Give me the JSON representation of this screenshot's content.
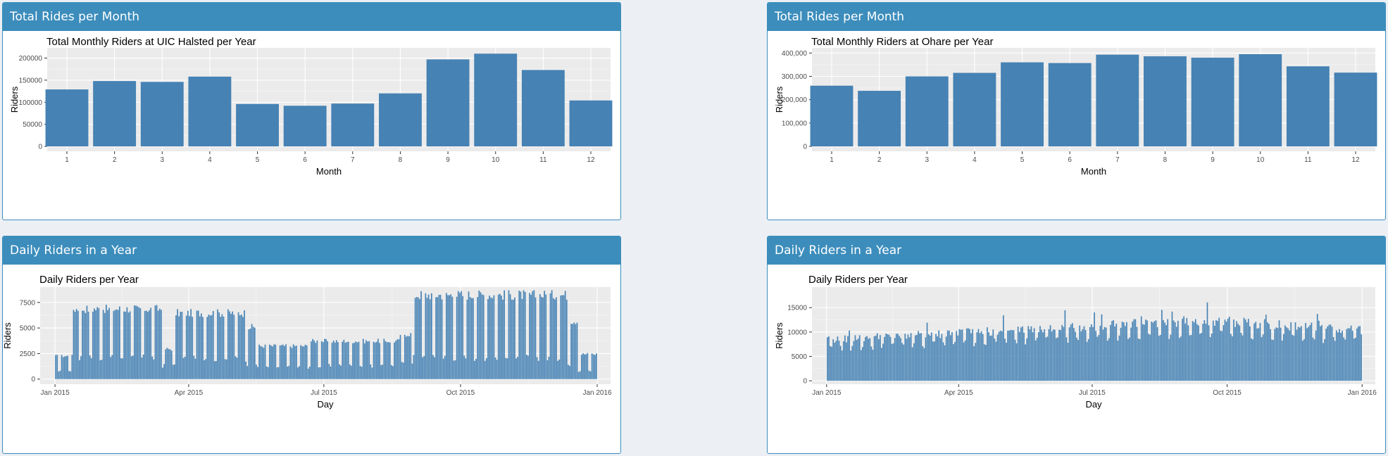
{
  "panels": [
    {
      "header": "Total Rides per Month"
    },
    {
      "header": "Total Rides per Month"
    },
    {
      "header": "Daily Riders in a Year"
    },
    {
      "header": "Daily Riders in a Year"
    }
  ],
  "colors": {
    "header_bg": "#3c8dbc",
    "bar": "#4682b4",
    "plot_bg": "#ebebeb",
    "page_bg": "#ecf0f5"
  },
  "chart_data": [
    {
      "type": "bar",
      "title": "Total Monthly Riders at UIC Halsted per Year",
      "xlabel": "Month",
      "ylabel": "Riders",
      "categories": [
        "1",
        "2",
        "3",
        "4",
        "5",
        "6",
        "7",
        "8",
        "9",
        "10",
        "11",
        "12"
      ],
      "values": [
        129000,
        148000,
        146000,
        158000,
        96000,
        92000,
        97000,
        120000,
        197000,
        210000,
        173000,
        104000
      ],
      "ylim": [
        0,
        212000
      ],
      "yticks": [
        0,
        50000,
        100000,
        150000,
        200000
      ],
      "ytick_labels": [
        "0",
        "50000",
        "100000",
        "150000",
        "200000"
      ],
      "grid": true
    },
    {
      "type": "bar",
      "title": "Total Monthly Riders at Ohare per Year",
      "xlabel": "Month",
      "ylabel": "Riders",
      "categories": [
        "1",
        "2",
        "3",
        "4",
        "5",
        "6",
        "7",
        "8",
        "9",
        "10",
        "11",
        "12"
      ],
      "values": [
        260000,
        238000,
        300000,
        315000,
        360000,
        357000,
        393000,
        386000,
        380000,
        395000,
        343000,
        316000
      ],
      "ylim": [
        0,
        401000
      ],
      "yticks": [
        0,
        100000,
        200000,
        300000,
        400000
      ],
      "ytick_labels": [
        "0",
        "100,000",
        "200,000",
        "300,000",
        "400,000"
      ],
      "grid": true
    },
    {
      "type": "bar",
      "title": "Daily Riders per Year",
      "xlabel": "Day",
      "ylabel": "Riders",
      "x_start": "2015-01-01",
      "x_end": "2015-12-31",
      "xlim": [
        "2014-12-22",
        "2016-01-10"
      ],
      "xticks": [
        "2015-01-01",
        "2015-04-01",
        "2015-07-01",
        "2015-10-01",
        "2016-01-01"
      ],
      "xtick_labels": [
        "Jan 2015",
        "Apr 2015",
        "Jul 2015",
        "Oct 2015",
        "Jan 2016"
      ],
      "segments": [
        {
          "from": "2015-01-01",
          "to": "2015-01-12",
          "weekday": 2300,
          "weekend": 850
        },
        {
          "from": "2015-01-13",
          "to": "2015-03-13",
          "weekday": 7000,
          "weekend": 2100
        },
        {
          "from": "2015-03-14",
          "to": "2015-03-22",
          "weekday": 3000,
          "weekend": 1300
        },
        {
          "from": "2015-03-23",
          "to": "2015-05-09",
          "weekday": 6600,
          "weekend": 2000
        },
        {
          "from": "2015-05-10",
          "to": "2015-05-16",
          "weekday": 5200,
          "weekend": 1500
        },
        {
          "from": "2015-05-17",
          "to": "2015-06-20",
          "weekday": 3300,
          "weekend": 1200
        },
        {
          "from": "2015-06-21",
          "to": "2015-08-20",
          "weekday": 3800,
          "weekend": 1300
        },
        {
          "from": "2015-08-21",
          "to": "2015-08-29",
          "weekday": 4500,
          "weekend": 1500
        },
        {
          "from": "2015-08-30",
          "to": "2015-12-11",
          "weekday": 8400,
          "weekend": 2100
        },
        {
          "from": "2015-12-12",
          "to": "2015-12-18",
          "weekday": 5800,
          "weekend": 1500
        },
        {
          "from": "2015-12-19",
          "to": "2015-12-31",
          "weekday": 2500,
          "weekend": 800
        }
      ],
      "ylim": [
        -500,
        9000
      ],
      "yticks": [
        0,
        2500,
        5000,
        7500
      ],
      "ytick_labels": [
        "0",
        "2500",
        "5000",
        "7500"
      ],
      "grid": true
    },
    {
      "type": "bar",
      "title": "Daily Riders per Year",
      "xlabel": "Day",
      "ylabel": "Riders",
      "x_start": "2015-01-01",
      "x_end": "2015-12-31",
      "xlim": [
        "2014-12-22",
        "2016-01-10"
      ],
      "xticks": [
        "2015-01-01",
        "2015-04-01",
        "2015-07-01",
        "2015-10-01",
        "2016-01-01"
      ],
      "xtick_labels": [
        "Jan 2015",
        "Apr 2015",
        "Jul 2015",
        "Oct 2015",
        "Jan 2016"
      ],
      "segments": [
        {
          "from": "2015-01-01",
          "to": "2015-12-31",
          "start_level": 8500,
          "end_level": 10500,
          "peak_level": 12500,
          "peak_date": "2015-09-15",
          "max": 18500
        }
      ],
      "ylim": [
        -700,
        19200
      ],
      "yticks": [
        0,
        5000,
        10000,
        15000
      ],
      "ytick_labels": [
        "0",
        "5000",
        "10000",
        "15000"
      ],
      "grid": true
    }
  ]
}
